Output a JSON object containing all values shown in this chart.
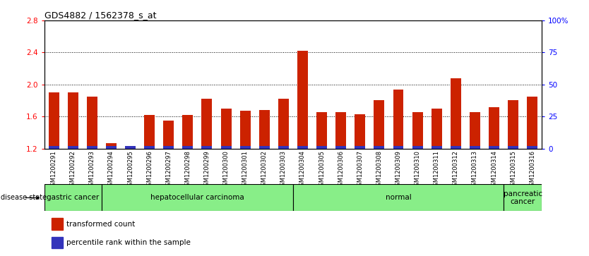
{
  "title": "GDS4882 / 1562378_s_at",
  "samples": [
    "GSM1200291",
    "GSM1200292",
    "GSM1200293",
    "GSM1200294",
    "GSM1200295",
    "GSM1200296",
    "GSM1200297",
    "GSM1200298",
    "GSM1200299",
    "GSM1200300",
    "GSM1200301",
    "GSM1200302",
    "GSM1200303",
    "GSM1200304",
    "GSM1200305",
    "GSM1200306",
    "GSM1200307",
    "GSM1200308",
    "GSM1200309",
    "GSM1200310",
    "GSM1200311",
    "GSM1200312",
    "GSM1200313",
    "GSM1200314",
    "GSM1200315",
    "GSM1200316"
  ],
  "red_values": [
    1.9,
    1.9,
    1.85,
    1.27,
    1.22,
    1.62,
    1.55,
    1.62,
    1.82,
    1.7,
    1.67,
    1.68,
    1.82,
    2.42,
    1.65,
    1.65,
    1.63,
    1.8,
    1.94,
    1.65,
    1.7,
    2.08,
    1.65,
    1.72,
    1.8,
    1.85
  ],
  "blue_values": [
    0.05,
    0.05,
    0.03,
    0.03,
    0.03,
    0.03,
    0.03,
    0.03,
    0.03,
    0.03,
    0.03,
    0.03,
    0.03,
    0.03,
    0.03,
    0.03,
    0.03,
    0.05,
    0.05,
    0.03,
    0.06,
    0.03,
    0.03,
    0.03,
    0.05,
    0.05
  ],
  "ylim_left": [
    1.2,
    2.8
  ],
  "ylim_right": [
    0,
    100
  ],
  "yticks_left": [
    1.2,
    1.6,
    2.0,
    2.4,
    2.8
  ],
  "yticks_right": [
    0,
    25,
    50,
    75,
    100
  ],
  "ytick_labels_right": [
    "0",
    "25",
    "50",
    "75",
    "100%"
  ],
  "baseline": 1.2,
  "bar_color": "#cc2200",
  "blue_color": "#3333bb",
  "groups": [
    {
      "label": "gastric cancer",
      "start": 0,
      "end": 3
    },
    {
      "label": "hepatocellular carcinoma",
      "start": 3,
      "end": 13
    },
    {
      "label": "normal",
      "start": 13,
      "end": 24
    },
    {
      "label": "pancreatic\ncancer",
      "start": 24,
      "end": 26
    }
  ],
  "group_color": "#88ee88",
  "disease_state_label": "disease state",
  "legend_items": [
    {
      "color": "#cc2200",
      "label": "transformed count"
    },
    {
      "color": "#3333bb",
      "label": "percentile rank within the sample"
    }
  ],
  "tick_bg_color": "#d0d0d0",
  "plot_bg": "white"
}
